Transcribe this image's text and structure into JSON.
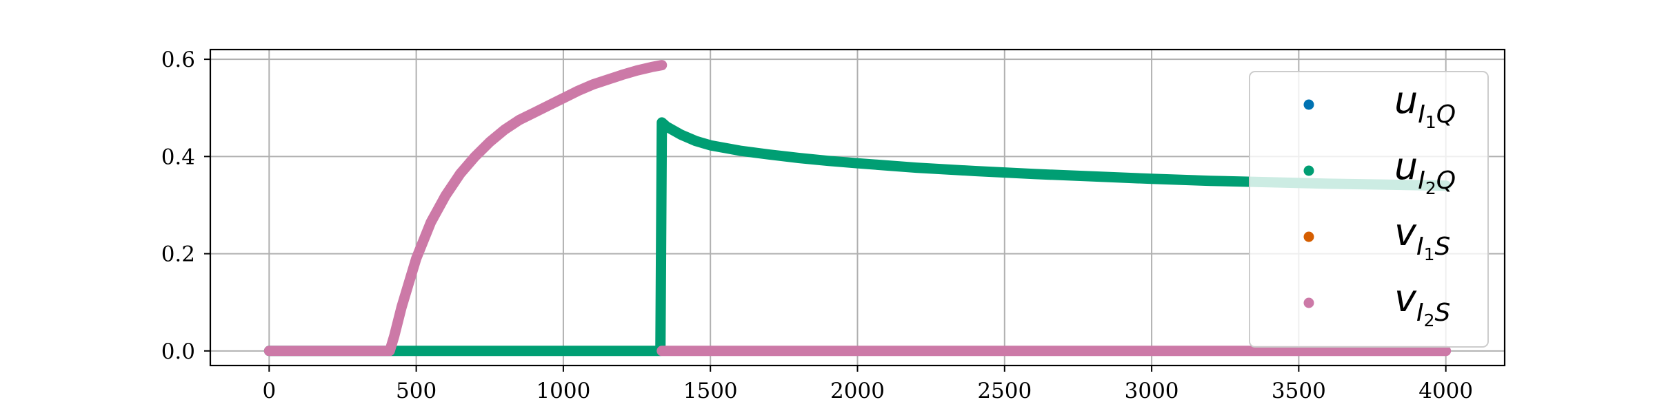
{
  "chart_data": {
    "type": "scatter",
    "title": "",
    "xlabel": "",
    "ylabel": "",
    "xlim": [
      -200,
      4200
    ],
    "ylim": [
      -0.03,
      0.62
    ],
    "grid": true,
    "legend_position": "upper-right",
    "x_ticks": [
      0,
      500,
      1000,
      1500,
      2000,
      2500,
      3000,
      3500,
      4000
    ],
    "x_tick_labels": [
      "0",
      "500",
      "1000",
      "1500",
      "2000",
      "2500",
      "3000",
      "3500",
      "4000"
    ],
    "y_ticks": [
      0.0,
      0.2,
      0.4,
      0.6
    ],
    "y_tick_labels": [
      "0.0",
      "0.2",
      "0.4",
      "0.6"
    ],
    "series": [
      {
        "name": "u_{I1Q}",
        "legend_main": "u",
        "legend_sub": "I",
        "legend_subsub": "1",
        "legend_tail": "Q",
        "color": "#0072b2",
        "points": []
      },
      {
        "name": "u_{I2Q}",
        "legend_main": "u",
        "legend_sub": "I",
        "legend_subsub": "2",
        "legend_tail": "Q",
        "color": "#009e73",
        "points": [
          [
            0,
            0.0
          ],
          [
            200,
            0.0
          ],
          [
            400,
            0.0
          ],
          [
            600,
            0.0
          ],
          [
            800,
            0.0
          ],
          [
            1000,
            0.0
          ],
          [
            1200,
            0.0
          ],
          [
            1330,
            0.0
          ],
          [
            1335,
            0.47
          ],
          [
            1350,
            0.462
          ],
          [
            1400,
            0.445
          ],
          [
            1450,
            0.432
          ],
          [
            1500,
            0.423
          ],
          [
            1600,
            0.412
          ],
          [
            1700,
            0.404
          ],
          [
            1800,
            0.397
          ],
          [
            1900,
            0.391
          ],
          [
            2000,
            0.386
          ],
          [
            2200,
            0.377
          ],
          [
            2400,
            0.37
          ],
          [
            2600,
            0.364
          ],
          [
            2800,
            0.359
          ],
          [
            3000,
            0.354
          ],
          [
            3200,
            0.35
          ],
          [
            3400,
            0.347
          ],
          [
            3600,
            0.344
          ],
          [
            3800,
            0.342
          ],
          [
            4000,
            0.34
          ]
        ]
      },
      {
        "name": "v_{I1S}",
        "legend_main": "v",
        "legend_sub": "I",
        "legend_subsub": "1",
        "legend_tail": "S",
        "color": "#d55e00",
        "points": []
      },
      {
        "name": "v_{I2S}",
        "legend_main": "v",
        "legend_sub": "I",
        "legend_subsub": "2",
        "legend_tail": "S",
        "color": "#cc79a7",
        "points": [
          [
            0,
            0.0
          ],
          [
            100,
            0.0
          ],
          [
            200,
            0.0
          ],
          [
            300,
            0.0
          ],
          [
            400,
            0.0
          ],
          [
            410,
            0.0
          ],
          [
            425,
            0.03
          ],
          [
            450,
            0.09
          ],
          [
            475,
            0.14
          ],
          [
            500,
            0.19
          ],
          [
            550,
            0.265
          ],
          [
            600,
            0.32
          ],
          [
            650,
            0.365
          ],
          [
            700,
            0.4
          ],
          [
            750,
            0.43
          ],
          [
            800,
            0.455
          ],
          [
            850,
            0.475
          ],
          [
            900,
            0.49
          ],
          [
            950,
            0.505
          ],
          [
            1000,
            0.52
          ],
          [
            1050,
            0.535
          ],
          [
            1100,
            0.548
          ],
          [
            1150,
            0.558
          ],
          [
            1200,
            0.568
          ],
          [
            1250,
            0.577
          ],
          [
            1300,
            0.584
          ],
          [
            1335,
            0.588
          ],
          [
            1335,
            0.0
          ],
          [
            1500,
            0.0
          ],
          [
            1750,
            0.0
          ],
          [
            2000,
            0.0
          ],
          [
            2250,
            0.0
          ],
          [
            2500,
            0.0
          ],
          [
            2750,
            0.0
          ],
          [
            3000,
            0.0
          ],
          [
            3250,
            0.0
          ],
          [
            3500,
            0.0
          ],
          [
            3750,
            0.0
          ],
          [
            4000,
            0.0
          ]
        ]
      }
    ]
  }
}
